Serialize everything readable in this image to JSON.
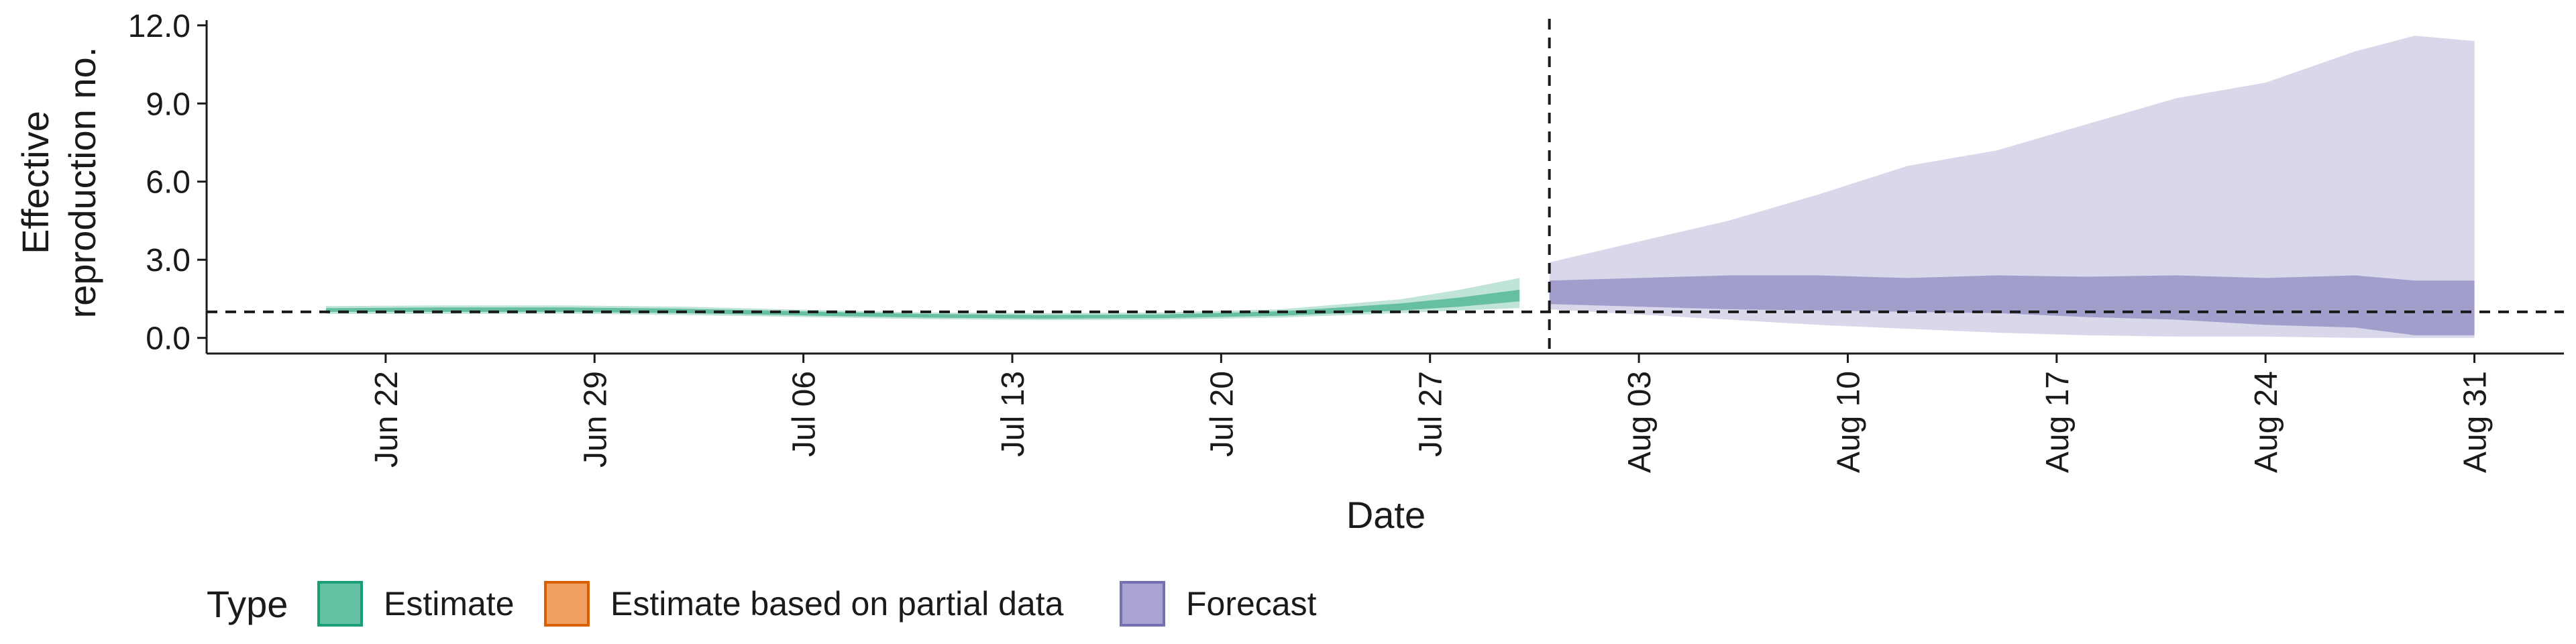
{
  "chart_data": {
    "type": "area",
    "xlabel": "Date",
    "ylabel_lines": [
      "Effective",
      "reproduction no."
    ],
    "ylim": [
      -0.6,
      12.2
    ],
    "yticks": [
      0,
      3,
      6,
      9,
      12
    ],
    "ytick_labels": [
      "0.0",
      "3.0",
      "6.0",
      "9.0",
      "12.0"
    ],
    "xlim": [
      "2020-06-16",
      "2020-09-03"
    ],
    "xticks": [
      "2020-06-22",
      "2020-06-29",
      "2020-07-06",
      "2020-07-13",
      "2020-07-20",
      "2020-07-27",
      "2020-08-03",
      "2020-08-10",
      "2020-08-17",
      "2020-08-24",
      "2020-08-31"
    ],
    "xtick_labels": [
      "Jun 22",
      "Jun 29",
      "Jul 06",
      "Jul 13",
      "Jul 20",
      "Jul 27",
      "Aug 03",
      "Aug 10",
      "Aug 17",
      "Aug 24",
      "Aug 31"
    ],
    "reference_hline": 1.0,
    "reference_vline": "2020-07-31",
    "grid": false,
    "legend": {
      "title": "Type",
      "position": "bottom-left",
      "entries": [
        {
          "label": "Estimate",
          "fill": "#66c2a5",
          "stroke": "#1b9e77"
        },
        {
          "label": "Estimate based on partial data",
          "fill": "#f0a060",
          "stroke": "#d95f02"
        },
        {
          "label": "Forecast",
          "fill": "#a9a3d2",
          "stroke": "#7570b3"
        }
      ]
    },
    "series": [
      {
        "name": "Estimate",
        "color": "#1b9e77",
        "x": [
          "2020-06-20",
          "2020-06-24",
          "2020-06-28",
          "2020-07-02",
          "2020-07-06",
          "2020-07-10",
          "2020-07-14",
          "2020-07-18",
          "2020-07-22",
          "2020-07-26",
          "2020-07-28",
          "2020-07-30"
        ],
        "outer_lower": [
          0.92,
          0.92,
          0.93,
          0.88,
          0.8,
          0.72,
          0.68,
          0.7,
          0.78,
          0.95,
          1.05,
          1.15
        ],
        "outer_upper": [
          1.22,
          1.25,
          1.25,
          1.2,
          1.08,
          0.98,
          0.95,
          0.98,
          1.1,
          1.48,
          1.85,
          2.3
        ],
        "inner_lower": [
          1.0,
          1.0,
          1.0,
          0.95,
          0.86,
          0.78,
          0.74,
          0.76,
          0.85,
          1.05,
          1.2,
          1.4
        ],
        "inner_upper": [
          1.14,
          1.17,
          1.17,
          1.12,
          1.02,
          0.92,
          0.88,
          0.9,
          1.02,
          1.32,
          1.55,
          1.85
        ]
      },
      {
        "name": "Forecast",
        "color": "#7570b3",
        "x": [
          "2020-07-31",
          "2020-08-03",
          "2020-08-06",
          "2020-08-09",
          "2020-08-12",
          "2020-08-15",
          "2020-08-18",
          "2020-08-21",
          "2020-08-24",
          "2020-08-27",
          "2020-08-29",
          "2020-08-31"
        ],
        "outer_lower": [
          1.1,
          0.9,
          0.7,
          0.5,
          0.35,
          0.2,
          0.1,
          0.05,
          0.05,
          0.0,
          0.0,
          0.0
        ],
        "outer_upper": [
          2.9,
          3.7,
          4.5,
          5.5,
          6.6,
          7.2,
          8.2,
          9.2,
          9.8,
          11.0,
          11.6,
          11.4
        ],
        "inner_lower": [
          1.3,
          1.2,
          1.1,
          1.05,
          1.0,
          0.95,
          0.8,
          0.7,
          0.5,
          0.4,
          0.1,
          0.1
        ],
        "inner_upper": [
          2.2,
          2.3,
          2.4,
          2.4,
          2.3,
          2.4,
          2.35,
          2.4,
          2.3,
          2.4,
          2.2,
          2.2
        ]
      }
    ]
  }
}
